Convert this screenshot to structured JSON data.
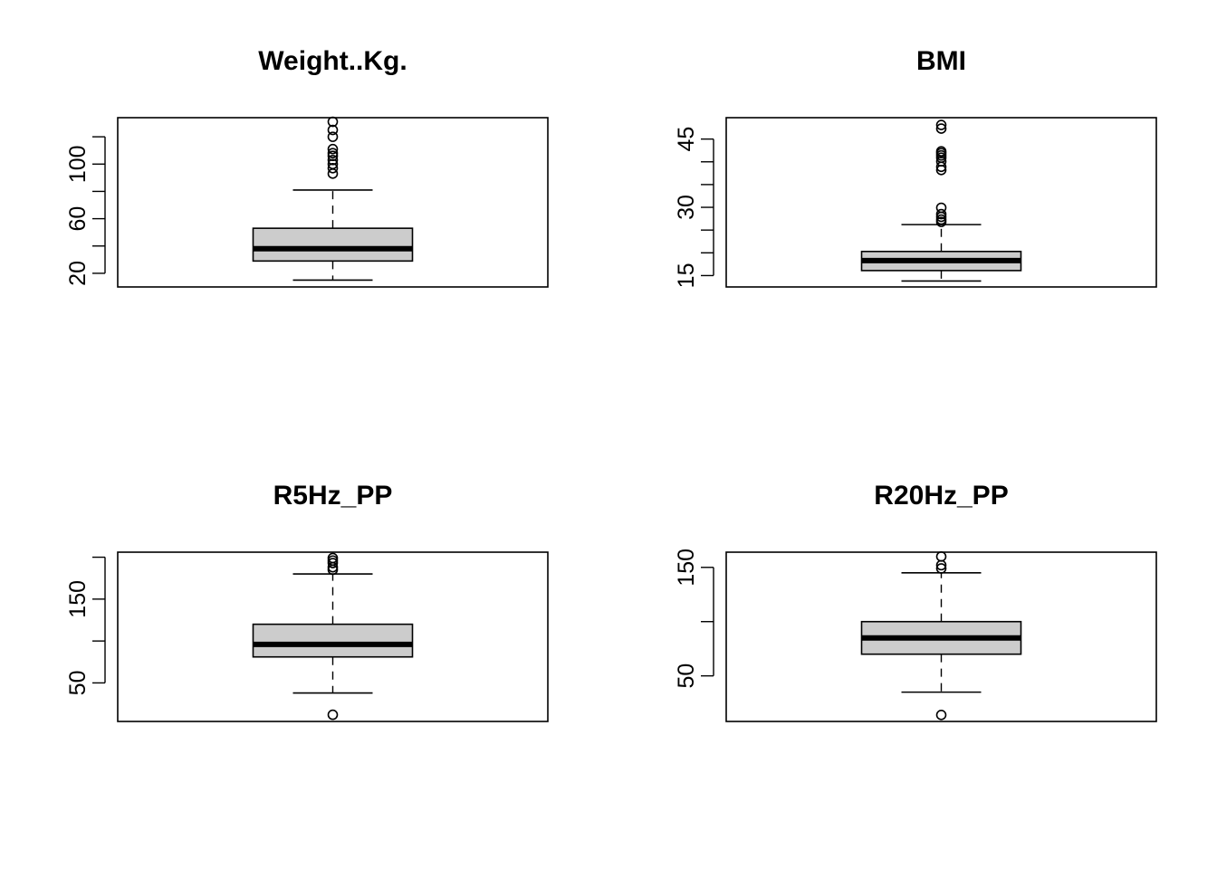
{
  "chart_data": [
    {
      "type": "box",
      "title": "Weight..Kg.",
      "ylim": [
        10,
        134
      ],
      "yticks": [
        20,
        40,
        60,
        80,
        100,
        120
      ],
      "ytick_labels": [
        "20",
        "",
        "60",
        "",
        "100",
        ""
      ],
      "box": {
        "lower_whisker": 15,
        "q1": 29,
        "median": 38,
        "q3": 53,
        "upper_whisker": 81
      },
      "outliers": [
        93,
        97,
        100,
        103,
        106,
        108,
        111,
        120,
        125,
        131
      ]
    },
    {
      "type": "box",
      "title": "BMI",
      "ylim": [
        12.5,
        49.7
      ],
      "yticks": [
        15,
        20,
        25,
        30,
        35,
        40,
        45
      ],
      "ytick_labels": [
        "15",
        "",
        "",
        "30",
        "",
        "",
        "45"
      ],
      "box": {
        "lower_whisker": 13.8,
        "q1": 16.1,
        "median": 18.3,
        "q3": 20.3,
        "upper_whisker": 26.2
      },
      "outliers": [
        26.8,
        27.3,
        27.9,
        28.5,
        29.9,
        38.2,
        38.9,
        40.1,
        40.9,
        41.4,
        41.9,
        42.3,
        47.3,
        48.1
      ]
    },
    {
      "type": "box",
      "title": "R5Hz_PP",
      "ylim": [
        4,
        206
      ],
      "yticks": [
        50,
        100,
        150,
        200
      ],
      "ytick_labels": [
        "50",
        "",
        "150",
        ""
      ],
      "box": {
        "lower_whisker": 38,
        "q1": 81,
        "median": 96,
        "q3": 120,
        "upper_whisker": 180
      },
      "outliers": [
        12,
        185,
        188,
        193,
        196,
        199
      ]
    },
    {
      "type": "box",
      "title": "R20Hz_PP",
      "ylim": [
        8,
        164
      ],
      "yticks": [
        50,
        100,
        150
      ],
      "ytick_labels": [
        "50",
        "",
        "150"
      ],
      "box": {
        "lower_whisker": 35,
        "q1": 70,
        "median": 85,
        "q3": 100,
        "upper_whisker": 145
      },
      "outliers": [
        14,
        149,
        152,
        160
      ]
    }
  ],
  "style": {
    "box_fill": "#cccccc",
    "line_color": "#000000",
    "background": "#ffffff"
  }
}
